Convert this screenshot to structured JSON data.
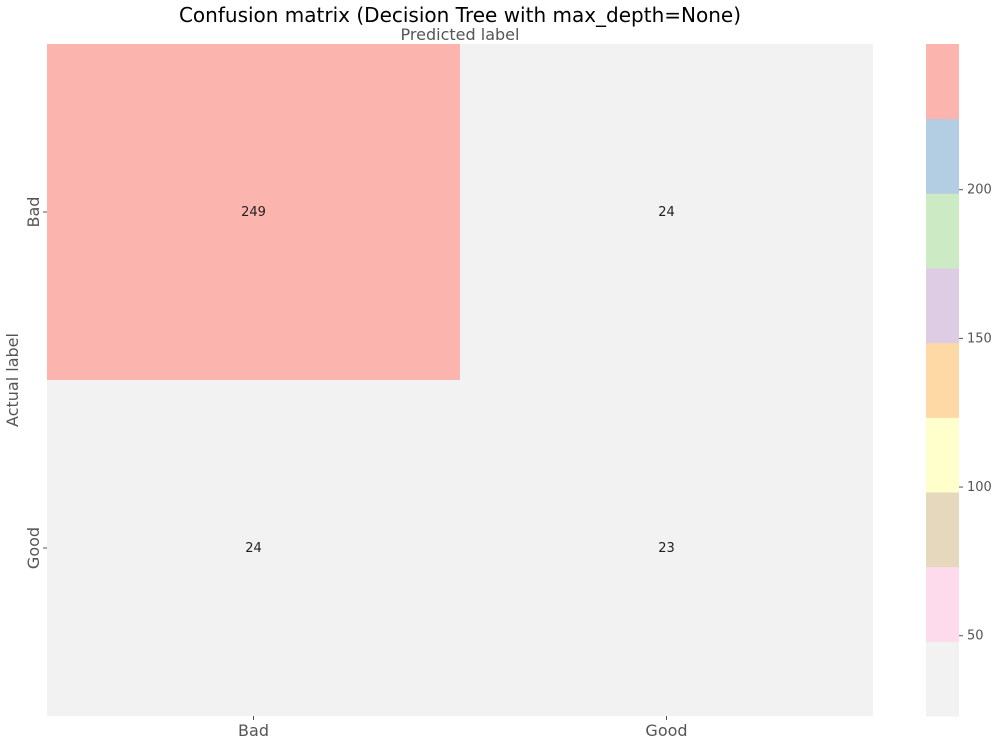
{
  "chart_data": {
    "type": "heatmap",
    "title": "Confusion matrix (Decision Tree with max_depth=None)",
    "xlabel": "Predicted label",
    "ylabel": "Actual label",
    "x_categories": [
      "Bad",
      "Good"
    ],
    "y_categories": [
      "Bad",
      "Good"
    ],
    "matrix": [
      [
        249,
        24
      ],
      [
        24,
        23
      ]
    ],
    "colormap": "Pastel1",
    "colorbar": {
      "range": [
        23,
        249
      ],
      "ticks": [
        50,
        100,
        150,
        200
      ],
      "colors": [
        "#f2f2f2",
        "#fddaec",
        "#e5d8bd",
        "#ffffcc",
        "#fed9a6",
        "#decbe4",
        "#ccebc5",
        "#b3cde3",
        "#fbb4ae"
      ]
    },
    "grid": false
  }
}
